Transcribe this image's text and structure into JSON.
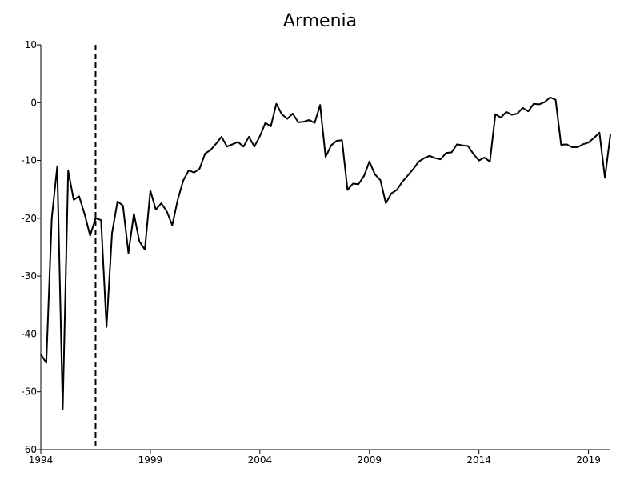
{
  "chart_data": {
    "type": "line",
    "title": "Armenia",
    "xlabel": "",
    "ylabel": "",
    "xlim": [
      1994,
      2020.0
    ],
    "ylim": [
      -60,
      10
    ],
    "x_ticks": [
      1994,
      1999,
      2004,
      2009,
      2014,
      2019
    ],
    "y_ticks": [
      10,
      0,
      -10,
      -20,
      -30,
      -40,
      -50,
      -60
    ],
    "grid": false,
    "legend": "none",
    "line_color": "#000000",
    "reference_line": {
      "x": 1996.5,
      "style": "dashed"
    },
    "series": [
      {
        "x": [
          1994.0,
          1994.25,
          1994.5,
          1994.75,
          1995.0,
          1995.25,
          1995.5,
          1995.75,
          1996.0,
          1996.25,
          1996.5,
          1996.75,
          1997.0,
          1997.25,
          1997.5,
          1997.75,
          1998.0,
          1998.25,
          1998.5,
          1998.75,
          1999.0,
          1999.25,
          1999.5,
          1999.75,
          2000.0,
          2000.25,
          2000.5,
          2000.75,
          2001.0,
          2001.25,
          2001.5,
          2001.75,
          2002.0,
          2002.25,
          2002.5,
          2002.75,
          2003.0,
          2003.25,
          2003.5,
          2003.75,
          2004.0,
          2004.25,
          2004.5,
          2004.75,
          2005.0,
          2005.25,
          2005.5,
          2005.75,
          2006.0,
          2006.25,
          2006.5,
          2006.75,
          2007.0,
          2007.25,
          2007.5,
          2007.75,
          2008.0,
          2008.25,
          2008.5,
          2008.75,
          2009.0,
          2009.25,
          2009.5,
          2009.75,
          2010.0,
          2010.25,
          2010.5,
          2010.75,
          2011.0,
          2011.25,
          2011.5,
          2011.75,
          2012.0,
          2012.25,
          2012.5,
          2012.75,
          2013.0,
          2013.25,
          2013.5,
          2013.75,
          2014.0,
          2014.25,
          2014.5,
          2014.75,
          2015.0,
          2015.25,
          2015.5,
          2015.75,
          2016.0,
          2016.25,
          2016.5,
          2016.75,
          2017.0,
          2017.25,
          2017.5,
          2017.75,
          2018.0,
          2018.25,
          2018.5,
          2018.75,
          2019.0,
          2019.25,
          2019.5,
          2019.75,
          2020.0
        ],
        "values": [
          -43.5,
          -45,
          -20,
          -11,
          -53,
          -11.8,
          -16.8,
          -16.2,
          -19.3,
          -23,
          -20,
          -20.3,
          -38.8,
          -22.6,
          -17.1,
          -17.8,
          -26,
          -19.2,
          -24,
          -25.4,
          -15.2,
          -18.5,
          -17.4,
          -18.8,
          -21.2,
          -16.8,
          -13.5,
          -11.7,
          -12.1,
          -11.4,
          -8.8,
          -8.2,
          -7.1,
          -5.9,
          -7.6,
          -7.2,
          -6.8,
          -7.6,
          -5.9,
          -7.6,
          -5.8,
          -3.5,
          -4.1,
          -0.2,
          -2,
          -2.8,
          -1.9,
          -3.4,
          -3.3,
          -3,
          -3.5,
          -0.4,
          -9.4,
          -7.4,
          -6.6,
          -6.5,
          -15.1,
          -14,
          -14.1,
          -12.7,
          -10.2,
          -12.4,
          -13.4,
          -17.4,
          -15.7,
          -15.1,
          -13.7,
          -12.6,
          -11.5,
          -10.2,
          -9.6,
          -9.2,
          -9.6,
          -9.8,
          -8.7,
          -8.6,
          -7.2,
          -7.4,
          -7.5,
          -8.9,
          -10,
          -9.5,
          -10.2,
          -2,
          -2.6,
          -1.6,
          -2.1,
          -1.9,
          -0.9,
          -1.5,
          -0.2,
          -0.3,
          0.1,
          0.9,
          0.5,
          -7.3,
          -7.2,
          -7.7,
          -7.7,
          -7.2,
          -6.9,
          -6.1,
          -5.2,
          -13,
          -5.5
        ]
      }
    ]
  }
}
